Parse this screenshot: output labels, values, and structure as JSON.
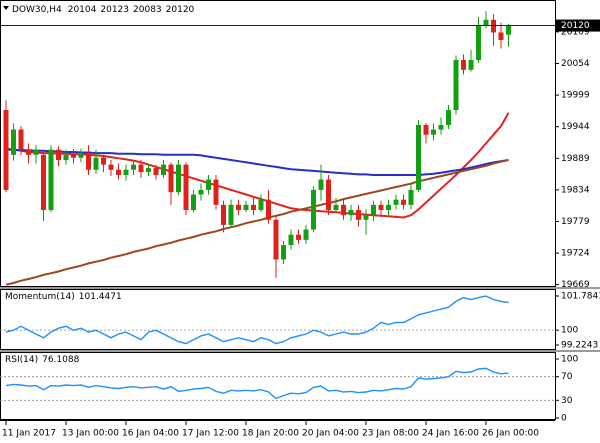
{
  "chart_data": [
    {
      "type": "candlestick",
      "symbol": "DOW30,H4",
      "categories": [
        "11 Jan 2017",
        null,
        null,
        null,
        null,
        null,
        null,
        null,
        "13 Jan 00:00",
        null,
        null,
        null,
        null,
        null,
        null,
        null,
        "16 Jan 04:00",
        null,
        null,
        null,
        null,
        null,
        null,
        null,
        "17 Jan 12:00",
        null,
        null,
        null,
        null,
        null,
        null,
        null,
        "18 Jan 20:00",
        null,
        null,
        null,
        null,
        null,
        null,
        null,
        "20 Jan 04:00",
        null,
        null,
        null,
        null,
        null,
        null,
        null,
        "23 Jan 08:00",
        null,
        null,
        null,
        null,
        null,
        null,
        null,
        "24 Jan 16:00",
        null,
        null,
        null,
        null,
        null,
        null,
        null,
        "26 Jan 00:00",
        null,
        null,
        null
      ],
      "open": [
        19973,
        19895,
        19939,
        19904,
        19895,
        19895,
        19799,
        19904,
        19886,
        19895,
        19890,
        19898,
        19869,
        19890,
        19878,
        19869,
        19860,
        19869,
        19878,
        19865,
        19872,
        19860,
        19878,
        19830,
        19878,
        19799,
        19826,
        19834,
        19852,
        19808,
        19773,
        19808,
        19799,
        19808,
        19799,
        19817,
        19782,
        19713,
        19738,
        19756,
        19747,
        19765,
        19834,
        19852,
        19799,
        19808,
        19790,
        19799,
        19782,
        19790,
        19808,
        19799,
        19808,
        19817,
        19808,
        19834,
        19947,
        19930,
        19939,
        19947,
        19973,
        20060,
        20043,
        20060,
        20121,
        20130,
        20108,
        20104
      ],
      "high": [
        19990,
        19950,
        19945,
        19915,
        19912,
        19904,
        19912,
        19910,
        19904,
        19905,
        19906,
        19912,
        19904,
        19895,
        19886,
        19880,
        19878,
        19886,
        19886,
        19880,
        19878,
        19886,
        19882,
        19886,
        19882,
        19834,
        19845,
        19860,
        19860,
        19815,
        19817,
        19817,
        19815,
        19822,
        19826,
        19834,
        19790,
        19745,
        19765,
        19765,
        19773,
        19840,
        19878,
        19860,
        19820,
        19817,
        19808,
        19808,
        19800,
        19815,
        19815,
        19817,
        19826,
        19826,
        19845,
        19956,
        19950,
        19950,
        19960,
        19982,
        20068,
        20070,
        20078,
        20135,
        20145,
        20140,
        20125,
        20123
      ],
      "low": [
        19830,
        19885,
        19895,
        19880,
        19880,
        19780,
        19795,
        19875,
        19878,
        19880,
        19882,
        19860,
        19862,
        19865,
        19858,
        19852,
        19850,
        19860,
        19855,
        19858,
        19852,
        19855,
        19808,
        19825,
        19790,
        19795,
        19815,
        19826,
        19800,
        19760,
        19770,
        19790,
        19795,
        19790,
        19795,
        19775,
        19681,
        19705,
        19730,
        19740,
        19740,
        19760,
        19815,
        19790,
        19795,
        19782,
        19780,
        19770,
        19756,
        19780,
        19790,
        19790,
        19800,
        19800,
        19800,
        19830,
        19915,
        19920,
        19930,
        19940,
        19965,
        20035,
        20040,
        20055,
        20115,
        20085,
        20080,
        20083
      ],
      "close": [
        19834,
        19939,
        19904,
        19895,
        19904,
        19799,
        19904,
        19886,
        19895,
        19890,
        19898,
        19869,
        19890,
        19878,
        19869,
        19860,
        19869,
        19878,
        19865,
        19872,
        19860,
        19878,
        19830,
        19878,
        19799,
        19826,
        19834,
        19852,
        19808,
        19773,
        19808,
        19799,
        19808,
        19799,
        19817,
        19782,
        19713,
        19738,
        19756,
        19747,
        19765,
        19834,
        19852,
        19799,
        19808,
        19790,
        19799,
        19782,
        19790,
        19808,
        19799,
        19808,
        19817,
        19808,
        19834,
        19947,
        19930,
        19939,
        19947,
        19973,
        20060,
        20043,
        20060,
        20121,
        20130,
        20108,
        20095,
        20120
      ],
      "up_color": "#12a012",
      "down_color": "#e0201a",
      "series": [
        {
          "type": "line",
          "color": "#e8201a",
          "values": [
            19906,
            19904,
            19902,
            19900,
            19899,
            19898,
            19898,
            19897,
            19897,
            19896,
            19896,
            19895,
            19894,
            19893,
            19891,
            19889,
            19887,
            19885,
            19882,
            19878,
            19874,
            19870,
            19866,
            19862,
            19858,
            19854,
            19850,
            19846,
            19842,
            19838,
            19834,
            19830,
            19826,
            19822,
            19818,
            19814,
            19810,
            19806,
            19802,
            19800,
            19799,
            19798,
            19797,
            19796,
            19795,
            19794,
            19793,
            19792,
            19791,
            19790,
            19789,
            19788,
            19787,
            19786,
            19790,
            19800,
            19812,
            19824,
            19836,
            19848,
            19860,
            19873,
            19886,
            19900,
            19915,
            19930,
            19945,
            19968
          ]
        },
        {
          "type": "line",
          "color": "#2430c8",
          "values": [
            19904,
            19904,
            19903,
            19903,
            19902,
            19902,
            19901,
            19901,
            19900,
            19900,
            19899,
            19899,
            19898,
            19898,
            19898,
            19897,
            19897,
            19897,
            19896,
            19896,
            19896,
            19895,
            19895,
            19895,
            19895,
            19895,
            19894,
            19892,
            19890,
            19888,
            19886,
            19884,
            19882,
            19880,
            19878,
            19876,
            19874,
            19872,
            19870,
            19869,
            19868,
            19867,
            19866,
            19865,
            19864,
            19863,
            19862,
            19861,
            19861,
            19860,
            19860,
            19860,
            19860,
            19860,
            19860,
            19860,
            19861,
            19862,
            19864,
            19866,
            19868,
            19870,
            19873,
            19876,
            19879,
            19882,
            19884,
            19886
          ]
        },
        {
          "type": "line",
          "color": "#a0461e",
          "values": [
            19669,
            19672,
            19676,
            19679,
            19682,
            19686,
            19689,
            19692,
            19696,
            19699,
            19702,
            19706,
            19709,
            19712,
            19716,
            19719,
            19722,
            19726,
            19729,
            19732,
            19736,
            19739,
            19742,
            19746,
            19749,
            19752,
            19756,
            19759,
            19762,
            19766,
            19769,
            19772,
            19776,
            19779,
            19782,
            19786,
            19789,
            19792,
            19796,
            19799,
            19802,
            19805,
            19808,
            19811,
            19814,
            19818,
            19821,
            19824,
            19827,
            19830,
            19833,
            19836,
            19839,
            19842,
            19845,
            19849,
            19852,
            19855,
            19858,
            19861,
            19864,
            19867,
            19870,
            19873,
            19876,
            19880,
            19883,
            19886
          ]
        }
      ],
      "ylim": [
        19665,
        20161
      ],
      "yticks": [
        20109,
        20054,
        19999,
        19944,
        19889,
        19834,
        19779,
        19724,
        19669
      ]
    },
    {
      "type": "line",
      "title": "Momentum(14)",
      "color": "#1e90ff",
      "values": [
        99.9,
        100.0,
        100.2,
        100.0,
        99.8,
        99.6,
        99.9,
        100.1,
        100.2,
        100.0,
        100.1,
        99.9,
        100.0,
        99.8,
        99.6,
        99.8,
        99.9,
        99.7,
        99.5,
        99.9,
        100.0,
        99.8,
        99.6,
        99.4,
        99.3,
        99.5,
        99.7,
        99.8,
        99.6,
        99.4,
        99.5,
        99.6,
        99.5,
        99.4,
        99.6,
        99.5,
        99.3,
        99.4,
        99.6,
        99.7,
        99.8,
        100.0,
        99.9,
        99.7,
        99.8,
        99.9,
        99.8,
        99.8,
        99.9,
        100.1,
        100.4,
        100.3,
        100.4,
        100.4,
        100.6,
        100.8,
        100.9,
        101.0,
        101.1,
        101.2,
        101.5,
        101.7,
        101.6,
        101.7,
        101.78,
        101.6,
        101.5,
        101.4471
      ],
      "ylim": [
        99.2243,
        101.7841
      ],
      "yticks": [
        101.7841,
        100,
        99.2243
      ],
      "levels": [
        100
      ]
    },
    {
      "type": "line",
      "title": "RSI(14)",
      "color": "#1e90ff",
      "values": [
        55,
        57,
        56,
        54,
        55,
        48,
        55,
        54,
        56,
        55,
        56,
        52,
        55,
        53,
        51,
        50,
        52,
        53,
        51,
        52,
        53,
        49,
        53,
        45,
        47,
        49,
        50,
        52,
        45,
        42,
        47,
        46,
        47,
        46,
        48,
        44,
        33,
        38,
        42,
        41,
        43,
        52,
        54,
        46,
        47,
        44,
        45,
        43,
        44,
        47,
        46,
        48,
        50,
        49,
        53,
        68,
        66,
        67,
        68,
        70,
        79,
        77,
        78,
        83,
        84,
        78,
        75,
        76.1088
      ],
      "ylim": [
        0,
        100
      ],
      "yticks": [
        100,
        70,
        30,
        0
      ],
      "levels": [
        70,
        30
      ]
    }
  ]
}
